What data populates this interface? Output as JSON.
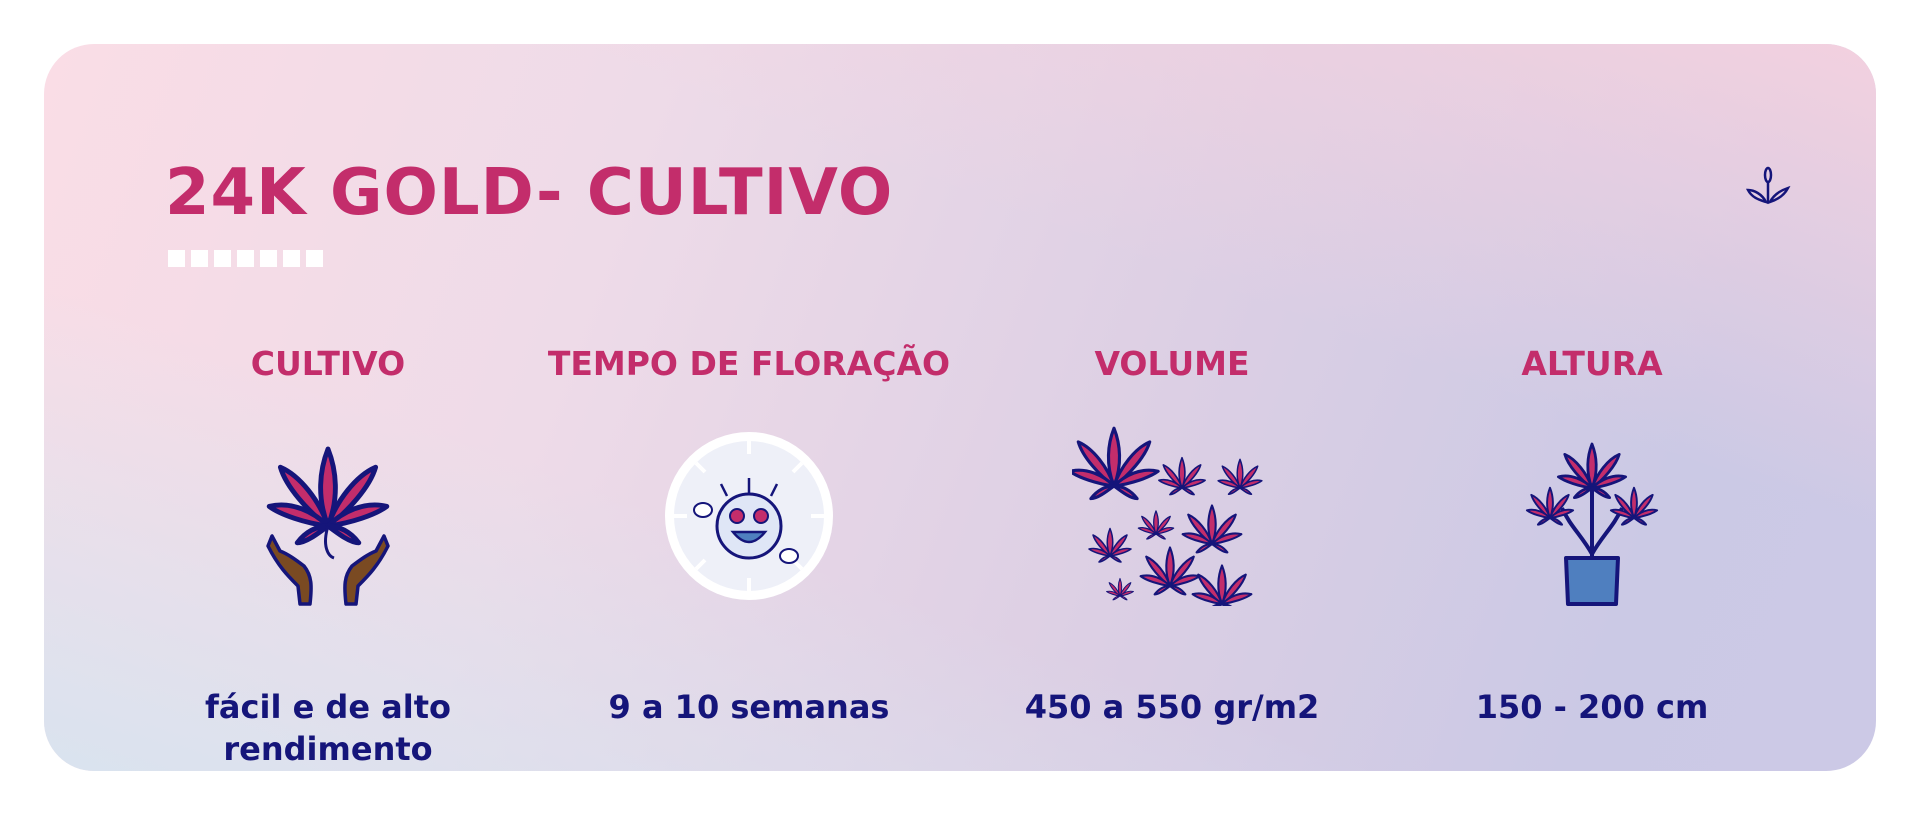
{
  "title": "24K GOLD- CULTIVO",
  "colors": {
    "accent": "#c32d6b",
    "text": "#15157a",
    "pot": "#4f7fbf"
  },
  "top_icon": "sprout-icon",
  "columns": [
    {
      "heading": "CULTIVO",
      "icon": "hands-holding-leaf-icon",
      "value_lines": [
        "fácil e de alto",
        "rendimento"
      ]
    },
    {
      "heading": "TEMPO DE FLORAÇÃO",
      "icon": "clock-happy-face-icon",
      "value_lines": [
        "9 a 10 semanas"
      ]
    },
    {
      "heading": "VOLUME",
      "icon": "many-leaves-icon",
      "value_lines": [
        "450 a 550 gr/m2"
      ]
    },
    {
      "heading": "ALTURA",
      "icon": "potted-plant-icon",
      "value_lines": [
        "150 - 200 cm"
      ]
    }
  ]
}
